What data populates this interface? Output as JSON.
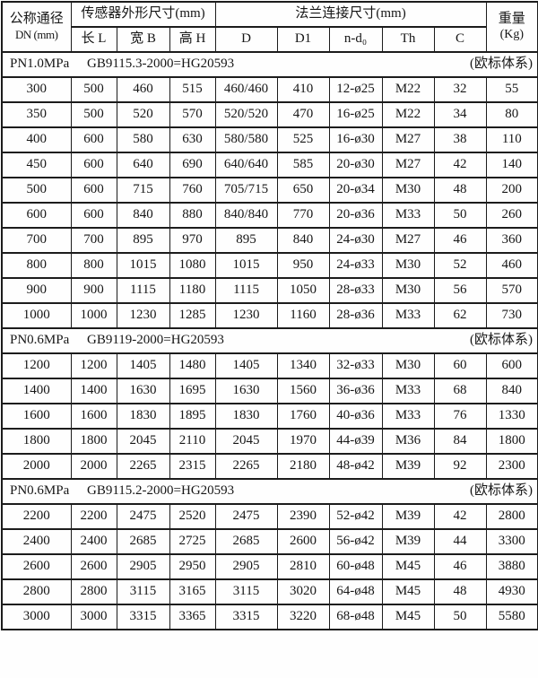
{
  "page": {
    "background_color": "#ffffff",
    "border_color": "#1c1c1c",
    "text_color": "#161616"
  },
  "table": {
    "header": {
      "dn_title": "公称通径",
      "dn_subtitle": "DN (mm)",
      "sensor_group_label": "传感器外形尺寸(mm)",
      "sensor_columns": [
        "长 L",
        "宽 B",
        "高 H"
      ],
      "flange_group_label": "法兰连接尺寸(mm)",
      "flange_columns": [
        "D",
        "D1",
        "n-d₀",
        "Th",
        "C"
      ],
      "weight_title": "重量",
      "weight_subtitle": "(Kg)"
    },
    "column_keys": [
      "dn",
      "length-l",
      "width-b",
      "height-h",
      "d",
      "d1",
      "n-d0",
      "th",
      "c",
      "weight"
    ],
    "sections": [
      {
        "pressure_rating": "PN1.0MPa",
        "standard": "GB9115.3-2000=HG20593",
        "note": "(欧标体系)",
        "rows": [
          [
            "300",
            "500",
            "460",
            "515",
            "460/460",
            "410",
            "12-ø25",
            "M22",
            "32",
            "55"
          ],
          [
            "350",
            "500",
            "520",
            "570",
            "520/520",
            "470",
            "16-ø25",
            "M22",
            "34",
            "80"
          ],
          [
            "400",
            "600",
            "580",
            "630",
            "580/580",
            "525",
            "16-ø30",
            "M27",
            "38",
            "110"
          ],
          [
            "450",
            "600",
            "640",
            "690",
            "640/640",
            "585",
            "20-ø30",
            "M27",
            "42",
            "140"
          ],
          [
            "500",
            "600",
            "715",
            "760",
            "705/715",
            "650",
            "20-ø34",
            "M30",
            "48",
            "200"
          ],
          [
            "600",
            "600",
            "840",
            "880",
            "840/840",
            "770",
            "20-ø36",
            "M33",
            "50",
            "260"
          ],
          [
            "700",
            "700",
            "895",
            "970",
            "895",
            "840",
            "24-ø30",
            "M27",
            "46",
            "360"
          ],
          [
            "800",
            "800",
            "1015",
            "1080",
            "1015",
            "950",
            "24-ø33",
            "M30",
            "52",
            "460"
          ],
          [
            "900",
            "900",
            "1115",
            "1180",
            "1115",
            "1050",
            "28-ø33",
            "M30",
            "56",
            "570"
          ],
          [
            "1000",
            "1000",
            "1230",
            "1285",
            "1230",
            "1160",
            "28-ø36",
            "M33",
            "62",
            "730"
          ]
        ]
      },
      {
        "pressure_rating": "PN0.6MPa",
        "standard": "GB9119-2000=HG20593",
        "note": "(欧标体系)",
        "rows": [
          [
            "1200",
            "1200",
            "1405",
            "1480",
            "1405",
            "1340",
            "32-ø33",
            "M30",
            "60",
            "600"
          ],
          [
            "1400",
            "1400",
            "1630",
            "1695",
            "1630",
            "1560",
            "36-ø36",
            "M33",
            "68",
            "840"
          ],
          [
            "1600",
            "1600",
            "1830",
            "1895",
            "1830",
            "1760",
            "40-ø36",
            "M33",
            "76",
            "1330"
          ],
          [
            "1800",
            "1800",
            "2045",
            "2110",
            "2045",
            "1970",
            "44-ø39",
            "M36",
            "84",
            "1800"
          ],
          [
            "2000",
            "2000",
            "2265",
            "2315",
            "2265",
            "2180",
            "48-ø42",
            "M39",
            "92",
            "2300"
          ]
        ]
      },
      {
        "pressure_rating": "PN0.6MPa",
        "standard": "GB9115.2-2000=HG20593",
        "note": "(欧标体系)",
        "rows": [
          [
            "2200",
            "2200",
            "2475",
            "2520",
            "2475",
            "2390",
            "52-ø42",
            "M39",
            "42",
            "2800"
          ],
          [
            "2400",
            "2400",
            "2685",
            "2725",
            "2685",
            "2600",
            "56-ø42",
            "M39",
            "44",
            "3300"
          ],
          [
            "2600",
            "2600",
            "2905",
            "2950",
            "2905",
            "2810",
            "60-ø48",
            "M45",
            "46",
            "3880"
          ],
          [
            "2800",
            "2800",
            "3115",
            "3165",
            "3115",
            "3020",
            "64-ø48",
            "M45",
            "48",
            "4930"
          ],
          [
            "3000",
            "3000",
            "3315",
            "3365",
            "3315",
            "3220",
            "68-ø48",
            "M45",
            "50",
            "5580"
          ]
        ]
      }
    ]
  }
}
